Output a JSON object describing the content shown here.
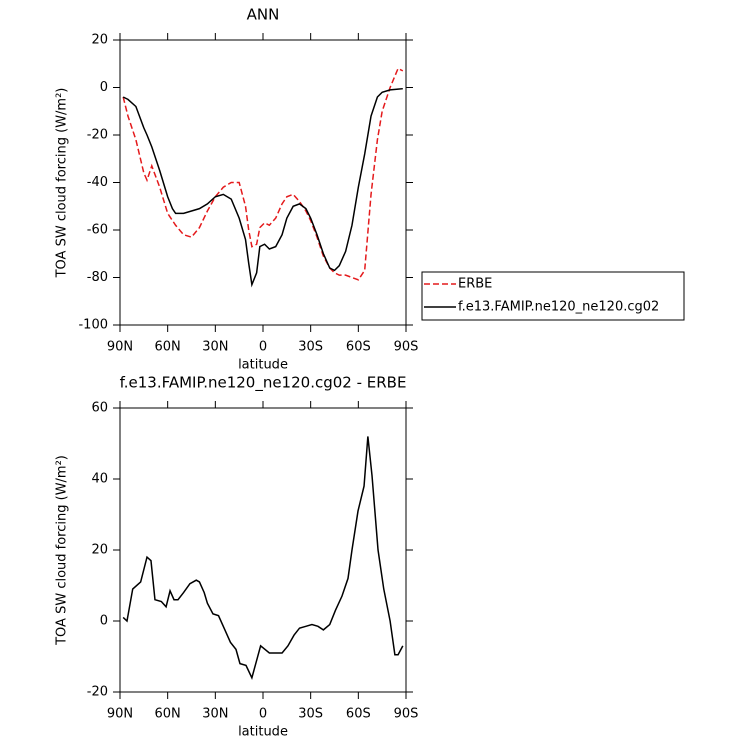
{
  "chart_data": [
    {
      "type": "line",
      "title": "ANN",
      "x_label": "latitude",
      "y_label": "TOA SW cloud forcing (W/m²)",
      "x": [
        88,
        85,
        80,
        75,
        73,
        70,
        65,
        60,
        57,
        55,
        50,
        45,
        40,
        35,
        30,
        25,
        20,
        15,
        11,
        9,
        7,
        4,
        2,
        -1,
        -4,
        -8,
        -12,
        -15,
        -19,
        -23,
        -27,
        -30,
        -34,
        -38,
        -42,
        -45,
        -48,
        -52,
        -56,
        -60,
        -64,
        -68,
        -72,
        -75,
        -80,
        -85,
        -88
      ],
      "series": [
        {
          "name": "ERBE",
          "color": "#e41a1c",
          "dash": "dashed",
          "values": [
            -4,
            -12,
            -22,
            -36,
            -39,
            -33,
            -42,
            -53,
            -56,
            -58,
            -62,
            -63,
            -59,
            -52,
            -46,
            -42,
            -40,
            -40,
            -50,
            -60,
            -67,
            -66,
            -59,
            -57,
            -58,
            -55,
            -49,
            -46,
            -45,
            -48,
            -52,
            -56,
            -63,
            -71,
            -76,
            -78,
            -79,
            -79,
            -80,
            -81,
            -77,
            -45,
            -22,
            -10,
            0,
            8,
            7
          ]
        },
        {
          "name": "f.e13.FAMIP.ne120_ne120.cg02",
          "color": "#000000",
          "dash": "solid",
          "values": [
            -4,
            -5,
            -8,
            -17,
            -20,
            -25,
            -35,
            -46,
            -51,
            -53,
            -53,
            -52,
            -51,
            -49,
            -46,
            -45,
            -47,
            -55,
            -64,
            -74,
            -83,
            -78,
            -67,
            -66,
            -68,
            -67,
            -62,
            -55,
            -50,
            -49,
            -51,
            -55,
            -62,
            -70,
            -76,
            -77,
            -75,
            -69,
            -58,
            -42,
            -28,
            -12,
            -4,
            -2,
            -1,
            -0.7,
            -0.5
          ]
        }
      ],
      "xlim": [
        90,
        -90
      ],
      "xticks": [
        {
          "value": 90,
          "label": "90N"
        },
        {
          "value": 60,
          "label": "60N"
        },
        {
          "value": 30,
          "label": "30N"
        },
        0,
        {
          "value": -30,
          "label": "30S"
        },
        {
          "value": -60,
          "label": "60S"
        },
        {
          "value": -90,
          "label": "90S"
        }
      ],
      "ylim": [
        -100,
        20
      ],
      "yticks": [
        -100,
        -80,
        -60,
        -40,
        -20,
        0,
        20
      ],
      "legend": "right"
    },
    {
      "type": "line",
      "title": "f.e13.FAMIP.ne120_ne120.cg02 - ERBE",
      "x_label": "latitude",
      "y_label": "TOA SW cloud forcing (W/m²)",
      "x": [
        88,
        85.6,
        82,
        77,
        73,
        70.5,
        68,
        64,
        61,
        58.5,
        56,
        53.5,
        50,
        46,
        42,
        40,
        37,
        35,
        31.5,
        28,
        24.5,
        20.5,
        17,
        14.5,
        10.7,
        7,
        1.5,
        -4,
        -8,
        -12,
        -15.7,
        -19.5,
        -23,
        -27,
        -30.8,
        -34.6,
        -38,
        -42,
        -45.6,
        -49.7,
        -53.5,
        -56,
        -59.8,
        -63.6,
        -66,
        -68.6,
        -72.4,
        -76,
        -80,
        -83,
        -85,
        -88
      ],
      "series": [
        {
          "color": "#000000",
          "dash": "solid",
          "values": [
            1,
            0,
            9,
            11,
            18,
            17,
            6,
            5.5,
            4,
            8.5,
            6,
            6,
            8,
            10.5,
            11.5,
            11,
            8,
            5,
            2,
            1.5,
            -2,
            -6,
            -8,
            -12,
            -12.5,
            -16,
            -7,
            -9,
            -9,
            -9,
            -7,
            -4,
            -2,
            -1.5,
            -1,
            -1.5,
            -2.5,
            -1,
            3,
            7,
            12,
            20,
            31,
            38,
            52,
            41,
            20,
            9,
            0,
            -9.5,
            -9.5,
            -7
          ]
        }
      ],
      "xlim": [
        90,
        -90
      ],
      "xticks": [
        {
          "value": 90,
          "label": "90N"
        },
        {
          "value": 60,
          "label": "60N"
        },
        {
          "value": 30,
          "label": "30N"
        },
        0,
        {
          "value": -30,
          "label": "30S"
        },
        {
          "value": -60,
          "label": "60S"
        },
        {
          "value": -90,
          "label": "90S"
        }
      ],
      "ylim": [
        -20,
        60
      ],
      "yticks": [
        -20,
        0,
        20,
        40,
        60
      ]
    }
  ]
}
